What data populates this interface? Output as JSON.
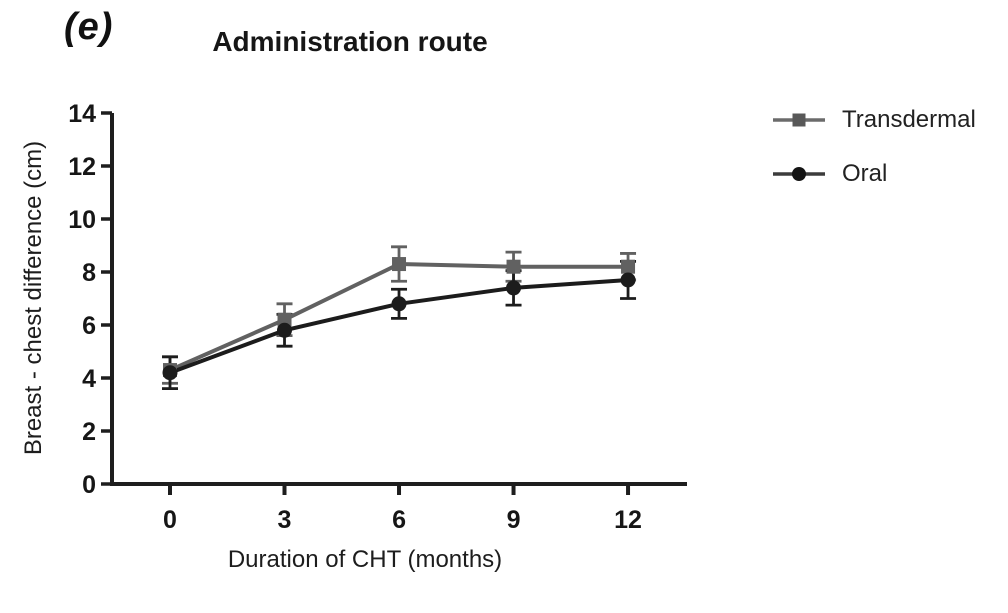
{
  "panel_label": "(e)",
  "chart_data": {
    "type": "line",
    "title": "Administration route",
    "xlabel": "Duration of CHT (months)",
    "ylabel": "Breast - chest difference (cm)",
    "x": [
      0,
      3,
      6,
      9,
      12
    ],
    "xtick_labels": [
      "0",
      "3",
      "6",
      "9",
      "12"
    ],
    "ylim": [
      0,
      14
    ],
    "ytick_step": 2,
    "grid": false,
    "legend_position": "right",
    "error_bar_style": "caps-both-directions",
    "series": [
      {
        "name": "Transdermal",
        "marker": "square",
        "color": "#616161",
        "values": [
          4.3,
          6.2,
          8.3,
          8.2,
          8.2
        ],
        "errors": [
          0.5,
          0.6,
          0.65,
          0.55,
          0.5
        ]
      },
      {
        "name": "Oral",
        "marker": "circle",
        "color": "#1c1c1c",
        "values": [
          4.2,
          5.8,
          6.8,
          7.4,
          7.7
        ],
        "errors": [
          0.6,
          0.6,
          0.55,
          0.65,
          0.7
        ]
      }
    ],
    "axis_color": "#1e1e1e"
  }
}
